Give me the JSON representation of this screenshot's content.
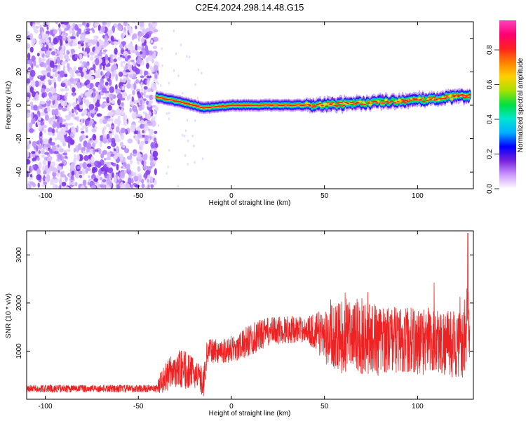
{
  "title": "C2E4.2024.298.14.48.G15",
  "chart_data": [
    {
      "type": "heatmap",
      "xlabel": "Height of straight line (km)",
      "ylabel": "Frequency (Hz)",
      "xlim": [
        -110,
        130
      ],
      "ylim": [
        -50,
        50
      ],
      "xticks": [
        -100,
        -50,
        0,
        50,
        100
      ],
      "yticks": [
        -40,
        -20,
        0,
        20,
        40
      ],
      "grid": false,
      "colorbar": {
        "label": "Normalized spectral amplitude",
        "range": [
          0,
          0.97
        ],
        "ticks": [
          0.0,
          0.2,
          0.4,
          0.6,
          0.8
        ],
        "colormap": [
          "#ffffff",
          "#cc99ff",
          "#7722dd",
          "#0000ff",
          "#00b0ff",
          "#00e5d0",
          "#00e040",
          "#a8e000",
          "#ffd000",
          "#ff8000",
          "#ff2020",
          "#ff0070",
          "#ff44c0"
        ]
      },
      "ridge": {
        "name": "dominant frequency line",
        "x": [
          -40,
          -30,
          -20,
          -15,
          -10,
          0,
          10,
          20,
          40,
          60,
          80,
          100,
          120,
          128
        ],
        "y": [
          5,
          2.5,
          0,
          -1.5,
          -1,
          0,
          0,
          0,
          0,
          0.5,
          2,
          3,
          5,
          6
        ]
      },
      "noise_region": {
        "x_range": [
          -110,
          -40
        ],
        "description": "broadband low-amplitude noise"
      }
    },
    {
      "type": "line",
      "xlabel": "Height of straight line (km)",
      "ylabel": "SNR (10 * v/v)",
      "xlim": [
        -110,
        130
      ],
      "ylim": [
        0,
        3500
      ],
      "xticks": [
        -100,
        -50,
        0,
        50,
        100
      ],
      "yticks": [
        1000,
        2000,
        3000
      ],
      "grid": false,
      "color": "#ee2222",
      "envelope": {
        "x": [
          -110,
          -40,
          -38,
          -30,
          -25,
          -20,
          -15,
          -13,
          -5,
          0,
          5,
          10,
          20,
          30,
          40,
          50,
          60,
          70,
          80,
          90,
          100,
          110,
          120,
          126,
          127,
          128
        ],
        "mean": [
          220,
          220,
          350,
          650,
          600,
          550,
          350,
          1000,
          1000,
          1050,
          1100,
          1250,
          1400,
          1450,
          1450,
          1350,
          1300,
          1300,
          1250,
          1250,
          1200,
          1200,
          1150,
          1100,
          2200,
          1100
        ],
        "spread": [
          80,
          80,
          250,
          400,
          400,
          300,
          300,
          250,
          250,
          300,
          300,
          350,
          300,
          300,
          250,
          550,
          800,
          800,
          700,
          700,
          700,
          700,
          700,
          700,
          700,
          500
        ]
      },
      "peak": {
        "x": 127,
        "y": 3450
      }
    }
  ]
}
